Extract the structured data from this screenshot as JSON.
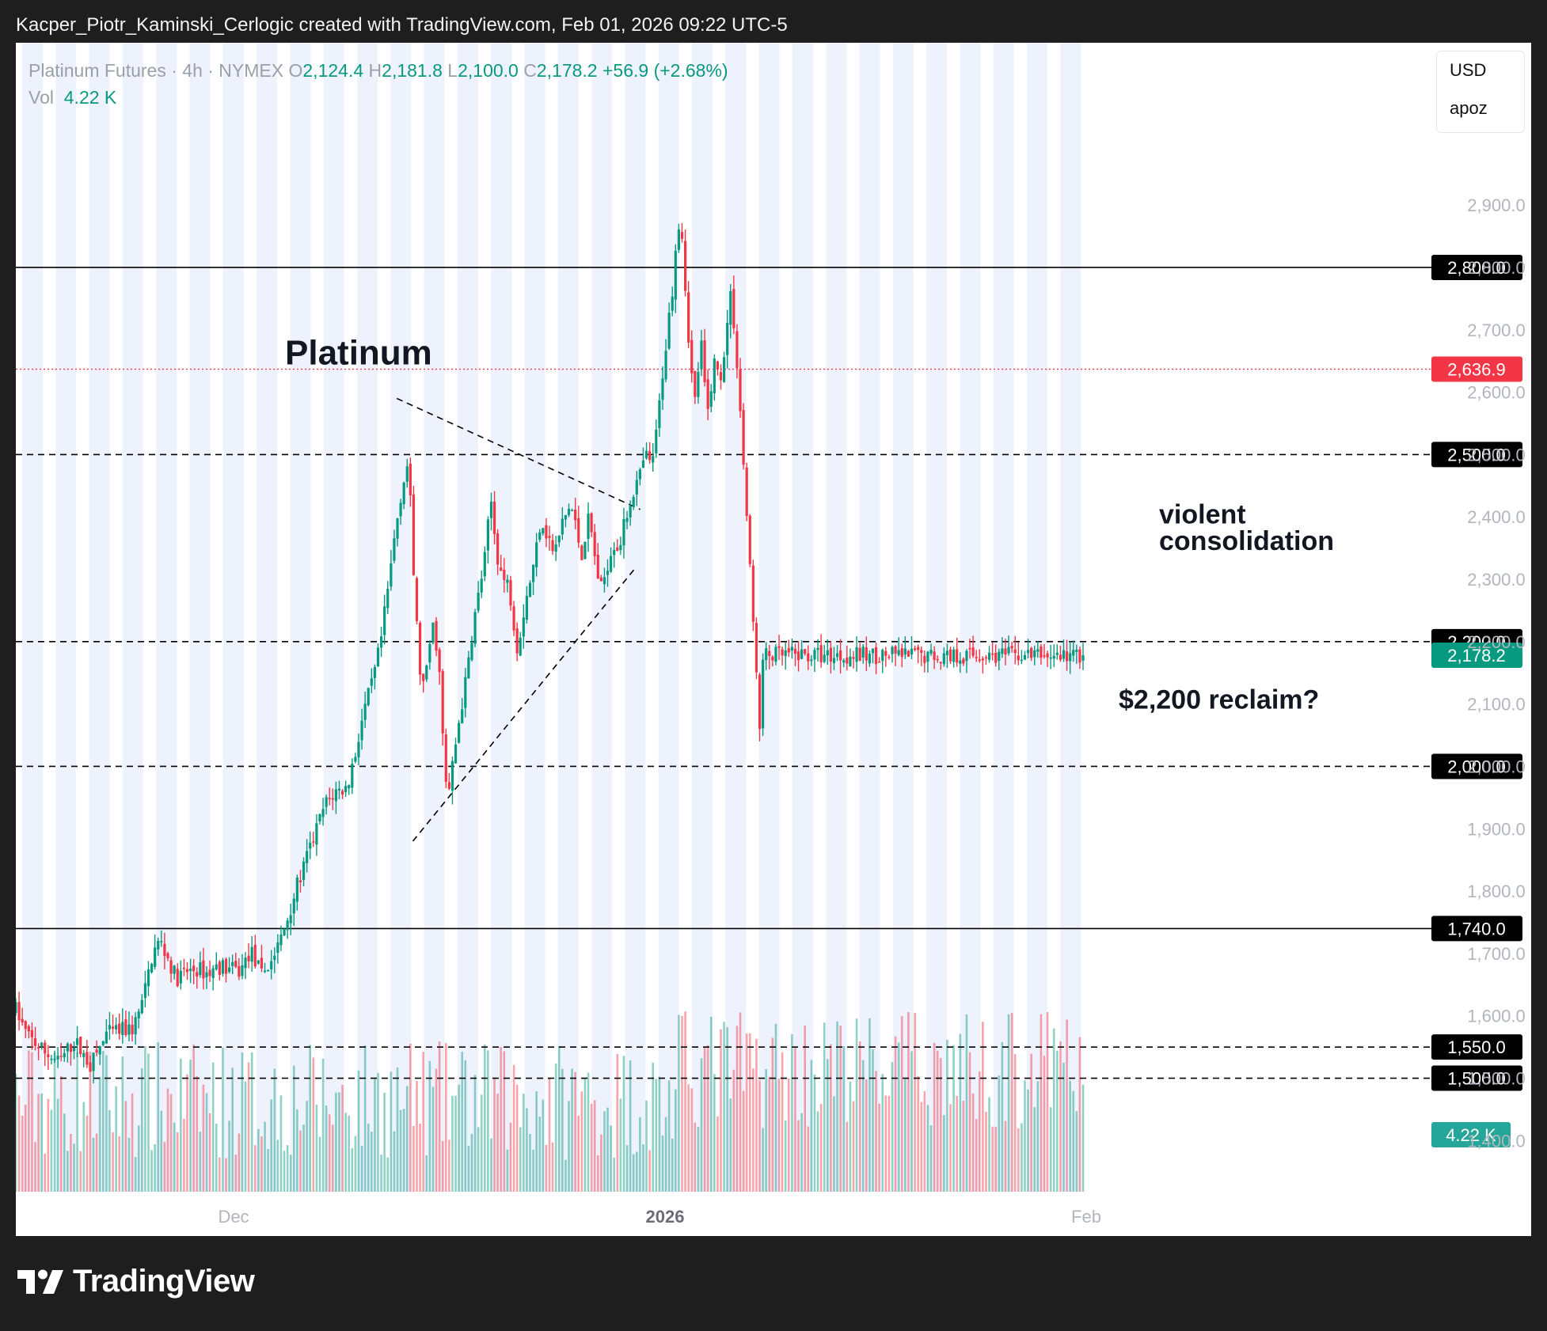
{
  "header": {
    "attribution": "Kacper_Piotr_Kaminski_Cerlogic created with TradingView.com, Feb 01, 2026 09:22 UTC-5"
  },
  "legend": {
    "symbol": "Platinum Futures · 4h · NYMEX",
    "o_label": "O",
    "o_value": "2,124.4",
    "h_label": "H",
    "h_value": "2,181.8",
    "l_label": "L",
    "l_value": "2,100.0",
    "c_label": "C",
    "c_value": "2,178.2",
    "change": "+56.9 (+2.68%)",
    "vol_label": "Vol",
    "vol_value": "4.22 K"
  },
  "currency_box": {
    "currency": "USD",
    "user": "apoz"
  },
  "footer": {
    "brand": "TradingView"
  },
  "colors": {
    "up": "#089981",
    "down": "#f23645",
    "band": "#eef2fd",
    "text": "#131722",
    "axis": "#b2b5be"
  },
  "chart_data": {
    "type": "candlestick",
    "timeframe": "4h",
    "ylim": [
      1370,
      2970
    ],
    "y_ticks": [
      "2,900.0",
      "2,800.0",
      "2,700.0",
      "2,600.0",
      "2,500.0",
      "2,400.0",
      "2,300.0",
      "2,200.0",
      "2,100.0",
      "2,000.0",
      "1,900.0",
      "1,800.0",
      "1,700.0",
      "1,600.0",
      "1,500.0",
      "1,400.0"
    ],
    "x_ticks": [
      {
        "label": "Dec",
        "bold": false
      },
      {
        "label": "2026",
        "bold": true
      },
      {
        "label": "Feb",
        "bold": false
      }
    ],
    "title_annotation": "Platinum",
    "annotations": [
      {
        "text": "violent",
        "price": 2405
      },
      {
        "text": "consolidation",
        "price": 2362
      },
      {
        "text": "$2,200 reclaim?",
        "price": 2108
      }
    ],
    "horizontal_lines": [
      {
        "price": 2800,
        "style": "solid",
        "label": "2,800.0"
      },
      {
        "price": 2636.9,
        "style": "dotted-red",
        "label": "2,636.9"
      },
      {
        "price": 2500,
        "style": "dashed",
        "label": "2,500.0"
      },
      {
        "price": 2200,
        "style": "dashed",
        "label": "2,200.0"
      },
      {
        "price": 2000,
        "style": "dashed",
        "label": "2,000.0"
      },
      {
        "price": 1740,
        "style": "solid",
        "label": "1,740.0"
      },
      {
        "price": 1550,
        "style": "dashed",
        "label": "1,550.0"
      },
      {
        "price": 1500,
        "style": "dashed",
        "label": "1,500.0"
      }
    ],
    "last_price": {
      "price": 2178.2,
      "label": "2,178.2"
    },
    "volume_label": "4.22 K",
    "trendlines": [
      {
        "from": {
          "bar": 0.357,
          "price": 2590
        },
        "to": {
          "bar": 0.585,
          "price": 2412
        }
      },
      {
        "from": {
          "bar": 0.372,
          "price": 1880
        },
        "to": {
          "bar": 0.579,
          "price": 2315
        }
      }
    ],
    "price_path": [
      [
        0.0,
        1610
      ],
      [
        0.01,
        1570
      ],
      [
        0.025,
        1545
      ],
      [
        0.04,
        1525
      ],
      [
        0.055,
        1560
      ],
      [
        0.07,
        1520
      ],
      [
        0.085,
        1570
      ],
      [
        0.095,
        1575
      ],
      [
        0.11,
        1580
      ],
      [
        0.12,
        1630
      ],
      [
        0.128,
        1700
      ],
      [
        0.135,
        1720
      ],
      [
        0.143,
        1690
      ],
      [
        0.15,
        1660
      ],
      [
        0.16,
        1670
      ],
      [
        0.17,
        1675
      ],
      [
        0.18,
        1668
      ],
      [
        0.19,
        1680
      ],
      [
        0.2,
        1675
      ],
      [
        0.21,
        1670
      ],
      [
        0.22,
        1705
      ],
      [
        0.23,
        1665
      ],
      [
        0.24,
        1690
      ],
      [
        0.25,
        1730
      ],
      [
        0.26,
        1790
      ],
      [
        0.27,
        1840
      ],
      [
        0.28,
        1890
      ],
      [
        0.29,
        1940
      ],
      [
        0.3,
        1960
      ],
      [
        0.31,
        1965
      ],
      [
        0.318,
        2020
      ],
      [
        0.325,
        2080
      ],
      [
        0.335,
        2140
      ],
      [
        0.342,
        2200
      ],
      [
        0.35,
        2300
      ],
      [
        0.355,
        2370
      ],
      [
        0.362,
        2450
      ],
      [
        0.368,
        2490
      ],
      [
        0.372,
        2330
      ],
      [
        0.378,
        2160
      ],
      [
        0.383,
        2120
      ],
      [
        0.39,
        2230
      ],
      [
        0.396,
        2180
      ],
      [
        0.402,
        1980
      ],
      [
        0.405,
        1950
      ],
      [
        0.41,
        2010
      ],
      [
        0.415,
        2070
      ],
      [
        0.422,
        2140
      ],
      [
        0.428,
        2220
      ],
      [
        0.435,
        2290
      ],
      [
        0.44,
        2340
      ],
      [
        0.445,
        2430
      ],
      [
        0.45,
        2350
      ],
      [
        0.456,
        2300
      ],
      [
        0.462,
        2290
      ],
      [
        0.47,
        2190
      ],
      [
        0.478,
        2270
      ],
      [
        0.485,
        2320
      ],
      [
        0.492,
        2400
      ],
      [
        0.498,
        2370
      ],
      [
        0.505,
        2340
      ],
      [
        0.512,
        2390
      ],
      [
        0.52,
        2420
      ],
      [
        0.525,
        2380
      ],
      [
        0.53,
        2340
      ],
      [
        0.537,
        2400
      ],
      [
        0.543,
        2330
      ],
      [
        0.548,
        2280
      ],
      [
        0.555,
        2330
      ],
      [
        0.56,
        2360
      ],
      [
        0.565,
        2350
      ],
      [
        0.572,
        2400
      ],
      [
        0.578,
        2440
      ],
      [
        0.584,
        2460
      ],
      [
        0.59,
        2500
      ],
      [
        0.595,
        2480
      ],
      [
        0.6,
        2530
      ],
      [
        0.606,
        2630
      ],
      [
        0.612,
        2720
      ],
      [
        0.616,
        2780
      ],
      [
        0.62,
        2880
      ],
      [
        0.624,
        2860
      ],
      [
        0.628,
        2750
      ],
      [
        0.632,
        2650
      ],
      [
        0.636,
        2580
      ],
      [
        0.642,
        2680
      ],
      [
        0.648,
        2560
      ],
      [
        0.654,
        2650
      ],
      [
        0.66,
        2620
      ],
      [
        0.666,
        2700
      ],
      [
        0.67,
        2760
      ],
      [
        0.674,
        2690
      ],
      [
        0.678,
        2590
      ],
      [
        0.682,
        2480
      ],
      [
        0.686,
        2370
      ],
      [
        0.69,
        2250
      ],
      [
        0.694,
        2160
      ],
      [
        0.697,
        2050
      ],
      [
        0.7,
        2170
      ],
      [
        0.703,
        2178
      ]
    ]
  }
}
